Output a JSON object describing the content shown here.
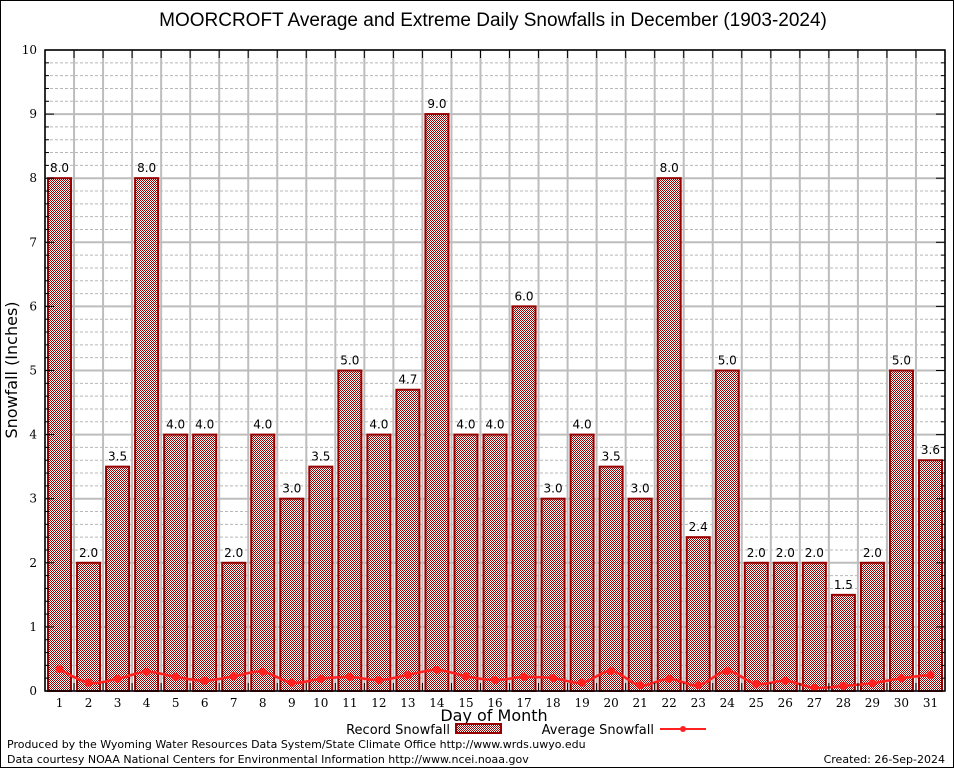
{
  "chart_data": {
    "type": "bar",
    "title": "MOORCROFT Average and Extreme Daily Snowfalls in December (1903-2024)",
    "xlabel": "Day of Month",
    "ylabel": "Snowfall (Inches)",
    "ylim": [
      0,
      10
    ],
    "yticks": [
      "0",
      "1",
      "2",
      "3",
      "4",
      "5",
      "6",
      "7",
      "8",
      "9",
      "10"
    ],
    "grid": true,
    "categories": [
      "1",
      "2",
      "3",
      "4",
      "5",
      "6",
      "7",
      "8",
      "9",
      "10",
      "11",
      "12",
      "13",
      "14",
      "15",
      "16",
      "17",
      "18",
      "19",
      "20",
      "21",
      "22",
      "23",
      "24",
      "25",
      "26",
      "27",
      "28",
      "29",
      "30",
      "31"
    ],
    "series": [
      {
        "name": "Record Snowfall",
        "type": "bar",
        "color": "#990000",
        "values": [
          8.0,
          2.0,
          3.5,
          8.0,
          4.0,
          4.0,
          2.0,
          4.0,
          3.0,
          3.5,
          5.0,
          4.0,
          4.7,
          9.0,
          4.0,
          4.0,
          6.0,
          3.0,
          4.0,
          3.5,
          3.0,
          8.0,
          2.4,
          5.0,
          2.0,
          2.0,
          2.0,
          1.5,
          2.0,
          5.0,
          3.6
        ],
        "labels": [
          "8.0",
          "2.0",
          "3.5",
          "8.0",
          "4.0",
          "4.0",
          "2.0",
          "4.0",
          "3.0",
          "3.5",
          "5.0",
          "4.0",
          "4.7",
          "9.0",
          "4.0",
          "4.0",
          "6.0",
          "3.0",
          "4.0",
          "3.5",
          "3.0",
          "8.0",
          "2.4",
          "5.0",
          "2.0",
          "2.0",
          "2.0",
          "1.5",
          "2.0",
          "5.0",
          "3.6"
        ]
      },
      {
        "name": "Average Snowfall",
        "type": "line",
        "color": "#ff2020",
        "values": [
          0.34,
          0.13,
          0.19,
          0.3,
          0.22,
          0.16,
          0.23,
          0.3,
          0.13,
          0.19,
          0.22,
          0.17,
          0.25,
          0.33,
          0.23,
          0.17,
          0.22,
          0.2,
          0.13,
          0.31,
          0.09,
          0.19,
          0.09,
          0.31,
          0.11,
          0.16,
          0.05,
          0.08,
          0.12,
          0.2,
          0.25
        ]
      }
    ],
    "legend": [
      "Record Snowfall",
      "Average Snowfall"
    ],
    "legend_position": "bottom"
  },
  "footer": {
    "line1": "Produced by the Wyoming Water Resources Data System/State Climate Office http://www.wrds.uwyo.edu",
    "line2": "Data courtesy NOAA National Centers for Environmental Information http://www.ncei.noaa.gov",
    "created": "Created: 26-Sep-2024"
  }
}
